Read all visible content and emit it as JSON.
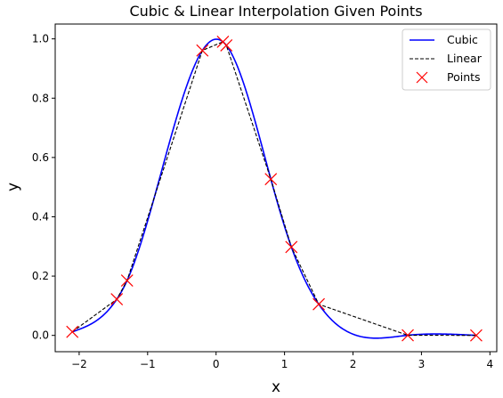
{
  "chart_data": {
    "type": "line",
    "title": "Cubic & Linear Interpolation Given Points",
    "xlabel": "x",
    "ylabel": "y",
    "xlim": [
      -2.35,
      4.1
    ],
    "ylim": [
      -0.055,
      1.05
    ],
    "xticks": [
      -2,
      -1,
      0,
      1,
      2,
      3,
      4
    ],
    "yticks": [
      0.0,
      0.2,
      0.4,
      0.6,
      0.8,
      1.0
    ],
    "xtick_labels": [
      "−2",
      "−1",
      "0",
      "1",
      "2",
      "3",
      "4"
    ],
    "ytick_labels": [
      "0.0",
      "0.2",
      "0.4",
      "0.6",
      "0.8",
      "1.0"
    ],
    "grid": false,
    "legend_position": "top-right",
    "points": {
      "x": [
        -2.1,
        -1.45,
        -1.3,
        -0.2,
        0.1,
        0.15,
        0.8,
        1.1,
        1.5,
        2.8,
        3.8
      ],
      "y": [
        0.012,
        0.122,
        0.185,
        0.961,
        0.99,
        0.978,
        0.527,
        0.298,
        0.105,
        0.0004,
        0.0
      ]
    },
    "series": [
      {
        "name": "Cubic",
        "style": "solid",
        "color": "#0000ff"
      },
      {
        "name": "Linear",
        "style": "dashed",
        "color": "#000000"
      },
      {
        "name": "Points",
        "style": "marker-x",
        "color": "#ff0000"
      }
    ]
  }
}
